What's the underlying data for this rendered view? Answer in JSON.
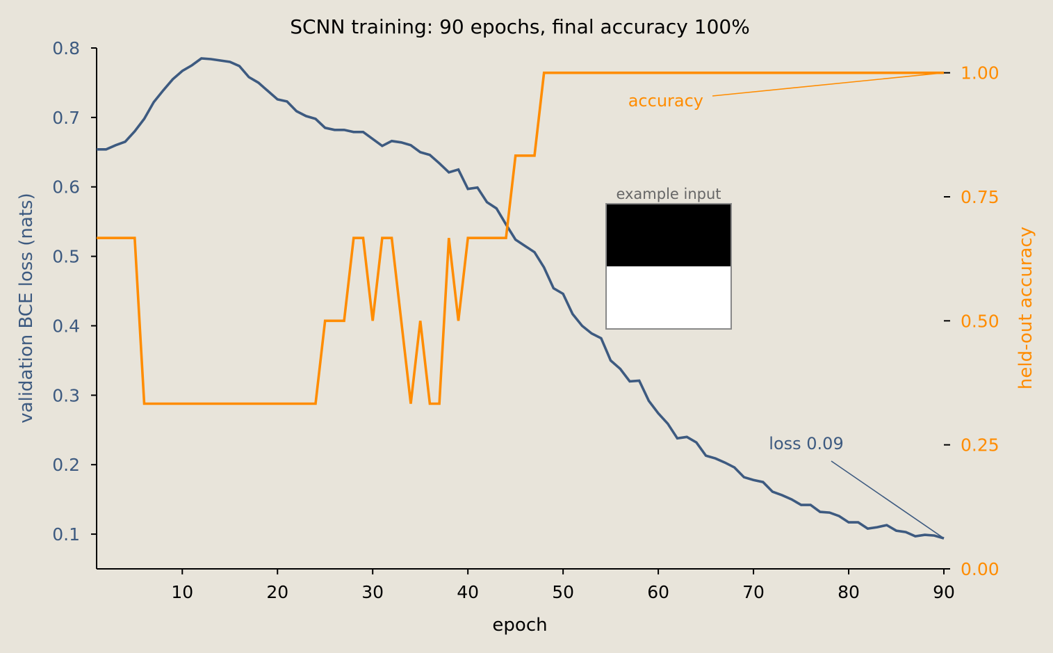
{
  "chart_data": {
    "type": "line",
    "title": "SCNN training: 90 epochs, final accuracy 100%",
    "xlabel": "epoch",
    "ylabel_left": "validation BCE loss (nats)",
    "ylabel_right": "held-out accuracy",
    "xlim": [
      1,
      90
    ],
    "ylim_left": [
      0.05,
      0.8
    ],
    "ylim_right": [
      0.0,
      1.05
    ],
    "x_ticks": [
      10,
      20,
      30,
      40,
      50,
      60,
      70,
      80,
      90
    ],
    "y_left_ticks": [
      "0.1",
      "0.2",
      "0.3",
      "0.4",
      "0.5",
      "0.6",
      "0.7",
      "0.8"
    ],
    "y_right_ticks": [
      "0.00",
      "0.25",
      "0.50",
      "0.75",
      "1.00"
    ],
    "grid": false,
    "colors": {
      "background": "#e8e4da",
      "loss": "#3d5a80",
      "accuracy": "#ff8c00",
      "axis": "#000000",
      "inset_label": "#666666"
    },
    "series": [
      {
        "axis": "left",
        "x": [
          1,
          2,
          3,
          4,
          5,
          6,
          7,
          8,
          9,
          10,
          11,
          12,
          13,
          14,
          15,
          16,
          17,
          18,
          19,
          20,
          21,
          22,
          23,
          24,
          25,
          26,
          27,
          28,
          29,
          30,
          31,
          32,
          33,
          34,
          35,
          36,
          37,
          38,
          39,
          40,
          41,
          42,
          43,
          44,
          45,
          46,
          47,
          48,
          49,
          50,
          51,
          52,
          53,
          54,
          55,
          56,
          57,
          58,
          59,
          60,
          61,
          62,
          63,
          64,
          65,
          66,
          67,
          68,
          69,
          70,
          71,
          72,
          73,
          74,
          75,
          76,
          77,
          78,
          79,
          80,
          81,
          82,
          83,
          84,
          85,
          86,
          87,
          88,
          89,
          90
        ],
        "values": [
          0.654,
          0.654,
          0.66,
          0.665,
          0.68,
          0.698,
          0.722,
          0.739,
          0.755,
          0.767,
          0.775,
          0.785,
          0.784,
          0.782,
          0.78,
          0.774,
          0.758,
          0.75,
          0.738,
          0.726,
          0.723,
          0.709,
          0.702,
          0.698,
          0.685,
          0.682,
          0.682,
          0.679,
          0.679,
          0.669,
          0.659,
          0.666,
          0.664,
          0.66,
          0.65,
          0.646,
          0.634,
          0.621,
          0.625,
          0.597,
          0.599,
          0.578,
          0.569,
          0.546,
          0.524,
          0.515,
          0.506,
          0.484,
          0.454,
          0.446,
          0.417,
          0.4,
          0.389,
          0.382,
          0.35,
          0.338,
          0.32,
          0.321,
          0.292,
          0.274,
          0.259,
          0.238,
          0.24,
          0.232,
          0.213,
          0.209,
          0.203,
          0.196,
          0.182,
          0.178,
          0.175,
          0.161,
          0.156,
          0.15,
          0.142,
          0.142,
          0.132,
          0.131,
          0.126,
          0.117,
          0.117,
          0.108,
          0.11,
          0.113,
          0.105,
          0.103,
          0.097,
          0.099,
          0.098,
          0.094
        ]
      },
      {
        "axis": "right",
        "x": [
          1,
          2,
          3,
          4,
          5,
          6,
          7,
          8,
          9,
          10,
          11,
          12,
          13,
          14,
          15,
          16,
          17,
          18,
          19,
          20,
          21,
          22,
          23,
          24,
          25,
          26,
          27,
          28,
          29,
          30,
          31,
          32,
          33,
          34,
          35,
          36,
          37,
          38,
          39,
          40,
          41,
          42,
          43,
          44,
          45,
          46,
          47,
          48,
          49,
          50,
          51,
          52,
          53,
          54,
          55,
          56,
          57,
          58,
          59,
          60,
          61,
          62,
          63,
          64,
          65,
          66,
          67,
          68,
          69,
          70,
          71,
          72,
          73,
          74,
          75,
          76,
          77,
          78,
          79,
          80,
          81,
          82,
          83,
          84,
          85,
          86,
          87,
          88,
          89,
          90
        ],
        "values": [
          0.667,
          0.667,
          0.667,
          0.667,
          0.667,
          0.333,
          0.333,
          0.333,
          0.333,
          0.333,
          0.333,
          0.333,
          0.333,
          0.333,
          0.333,
          0.333,
          0.333,
          0.333,
          0.333,
          0.333,
          0.333,
          0.333,
          0.333,
          0.333,
          0.5,
          0.5,
          0.5,
          0.667,
          0.667,
          0.5,
          0.667,
          0.667,
          0.5,
          0.333,
          0.5,
          0.333,
          0.333,
          0.667,
          0.5,
          0.667,
          0.667,
          0.667,
          0.667,
          0.667,
          0.833,
          0.833,
          0.833,
          1.0,
          1.0,
          1.0,
          1.0,
          1.0,
          1.0,
          1.0,
          1.0,
          1.0,
          1.0,
          1.0,
          1.0,
          1.0,
          1.0,
          1.0,
          1.0,
          1.0,
          1.0,
          1.0,
          1.0,
          1.0,
          1.0,
          1.0,
          1.0,
          1.0,
          1.0,
          1.0,
          1.0,
          1.0,
          1.0,
          1.0,
          1.0,
          1.0,
          1.0,
          1.0,
          1.0,
          1.0,
          1.0,
          1.0,
          1.0,
          1.0,
          1.0,
          1.0
        ]
      }
    ],
    "annotations": [
      {
        "text": "accuracy",
        "axis": "right",
        "target": [
          90,
          1.0
        ]
      },
      {
        "text": "loss 0.09",
        "axis": "left",
        "target": [
          90,
          0.094
        ]
      }
    ],
    "inset": {
      "label": "example input",
      "cells": [
        [
          "#000000"
        ],
        [
          "#ffffff"
        ]
      ]
    }
  }
}
